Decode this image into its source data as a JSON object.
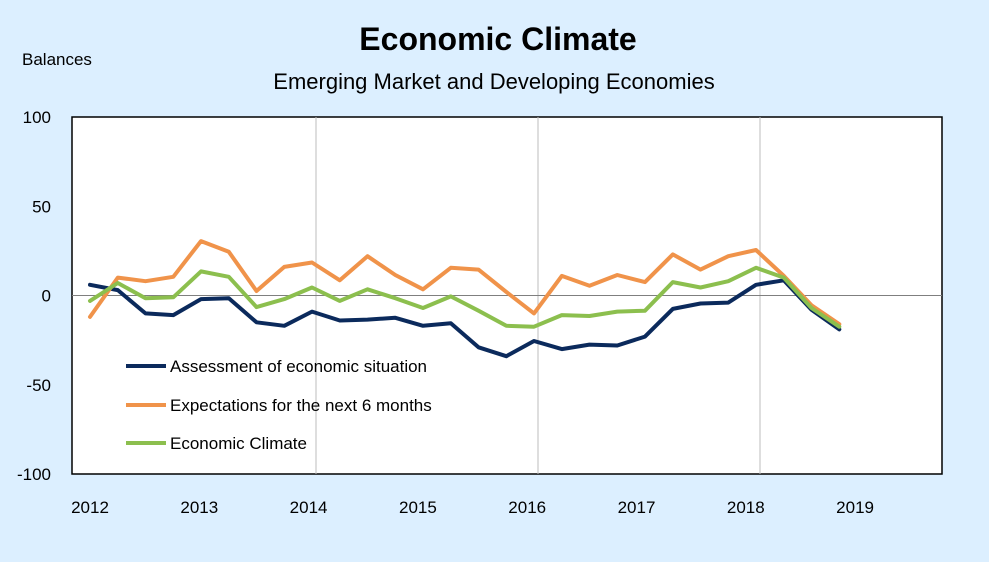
{
  "chart_data": {
    "type": "line",
    "title": "Economic Climate",
    "subtitle": "Emerging Market and Developing Economies",
    "ylabel": "Balances",
    "xlabel": "",
    "ylim": [
      -100,
      100
    ],
    "y_ticks": [
      100,
      50,
      0,
      -50,
      -100
    ],
    "xlim": [
      2012,
      2020
    ],
    "x_tick_labels": [
      "2012",
      "2013",
      "2014",
      "2015",
      "2016",
      "2017",
      "2018",
      "2019"
    ],
    "grid": "vertical lines at 2014, 2016, 2018; zero line",
    "legend_position": "lower-left",
    "x": [
      2012.0,
      2012.25,
      2012.5,
      2012.75,
      2013.0,
      2013.25,
      2013.5,
      2013.75,
      2014.0,
      2014.25,
      2014.5,
      2014.75,
      2015.0,
      2015.25,
      2015.5,
      2015.75,
      2016.0,
      2016.25,
      2016.5,
      2016.75,
      2017.0,
      2017.25,
      2017.5,
      2017.75,
      2018.0,
      2018.25,
      2018.5,
      2018.75
    ],
    "series": [
      {
        "name": "Assessment of  economic situation",
        "color": "#0b2a5c",
        "values": [
          6,
          3,
          -10,
          -11,
          -2,
          -1.5,
          -15,
          -17,
          -9,
          -14,
          -13.5,
          -12.5,
          -17,
          -15.5,
          -29,
          -34,
          -25.5,
          -30,
          -27.5,
          -28,
          -23,
          -7.5,
          -4.5,
          -4,
          6,
          8.5,
          -8,
          -19
        ]
      },
      {
        "name": "Expectations for the next 6 months",
        "color": "#f0934a",
        "values": [
          -12,
          10,
          8,
          10.5,
          30.5,
          24.5,
          2.5,
          16,
          18.5,
          8.5,
          22,
          11.5,
          3.5,
          15.5,
          14.5,
          2,
          -10,
          11,
          5.5,
          11.5,
          7.5,
          23,
          14.5,
          22,
          25.5,
          11,
          -5.5,
          -16
        ]
      },
      {
        "name": "Economic Climate",
        "color": "#8cbf4e",
        "values": [
          -3,
          7,
          -1.5,
          -1,
          13.5,
          10.5,
          -6.5,
          -2,
          4.5,
          -3,
          3.5,
          -1.5,
          -7,
          -0.5,
          -8.5,
          -17,
          -17.5,
          -11,
          -11.5,
          -9,
          -8.5,
          7.5,
          4.5,
          8,
          15.5,
          10,
          -7,
          -17.5
        ]
      }
    ]
  }
}
